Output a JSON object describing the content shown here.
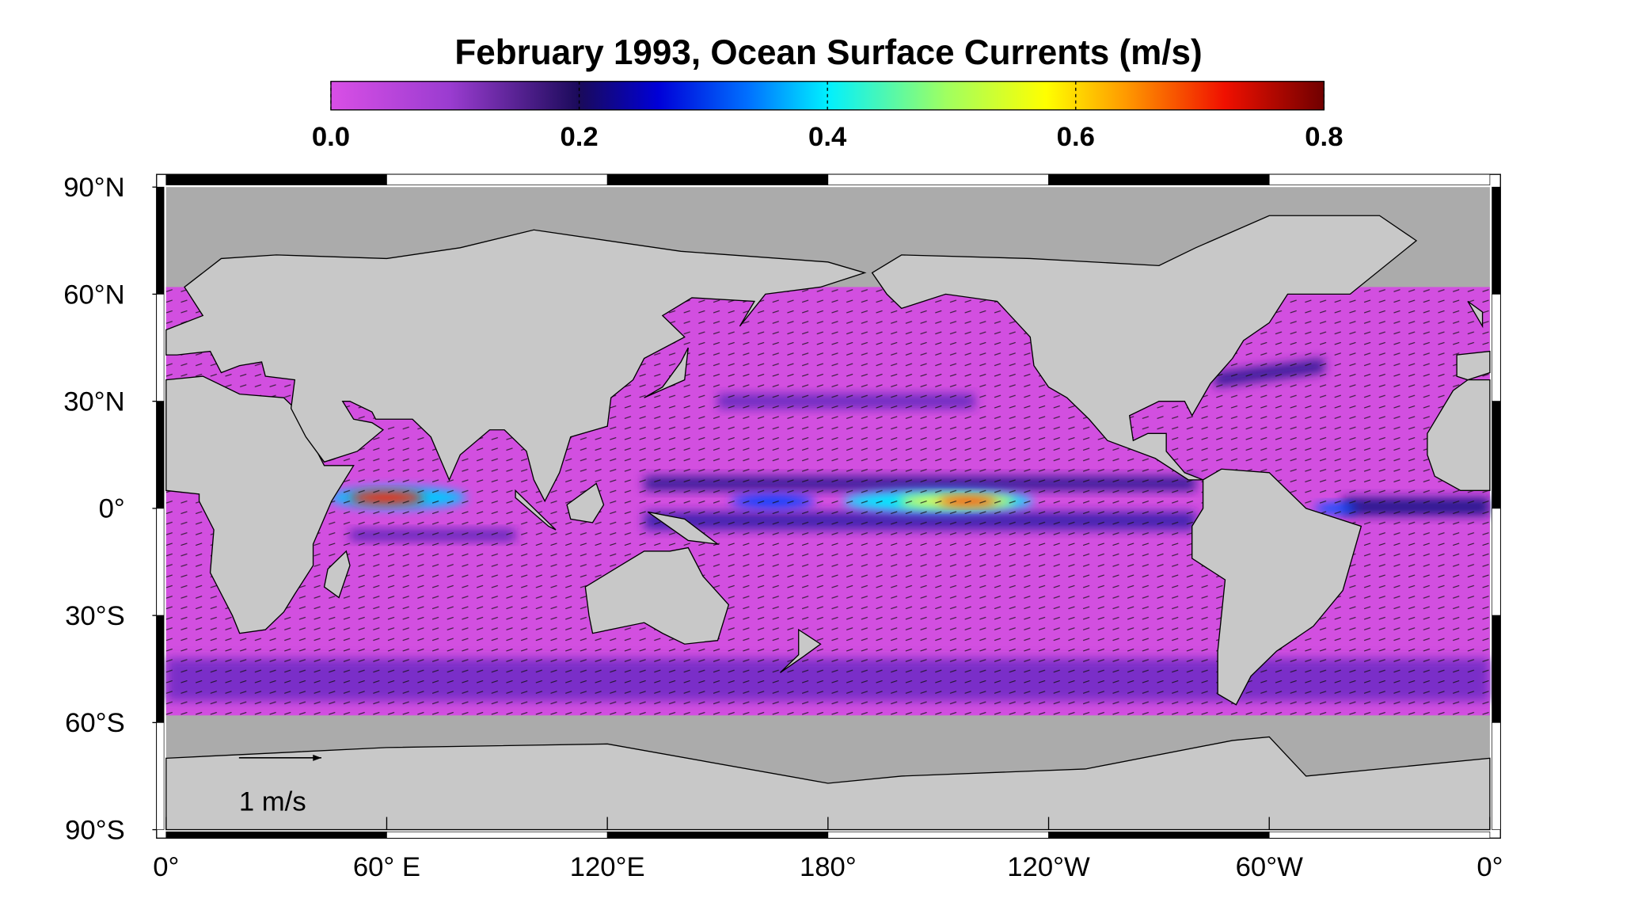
{
  "title": "February 1993, Ocean Surface Currents  (m/s)",
  "colorbar": {
    "range": [
      0,
      0.8
    ],
    "ticks": [
      {
        "value": 0,
        "label": "0.0"
      },
      {
        "value": 0.2,
        "label": "0.2"
      },
      {
        "value": 0.4,
        "label": "0.4"
      },
      {
        "value": 0.6,
        "label": "0.6"
      },
      {
        "value": 0.8,
        "label": "0.8"
      }
    ]
  },
  "map": {
    "lat_ticks": [
      {
        "value": 90,
        "label": "90°N"
      },
      {
        "value": 60,
        "label": "60°N"
      },
      {
        "value": 30,
        "label": "30°N"
      },
      {
        "value": 0,
        "label": "0°"
      },
      {
        "value": -30,
        "label": "30°S"
      },
      {
        "value": -60,
        "label": "60°S"
      },
      {
        "value": -90,
        "label": "90°S"
      }
    ],
    "lon_ticks": [
      {
        "value": 0,
        "label": "0°"
      },
      {
        "value": 60,
        "label": "60° E"
      },
      {
        "value": 120,
        "label": "120°E"
      },
      {
        "value": 180,
        "label": "180°"
      },
      {
        "value": 240,
        "label": "120°W"
      },
      {
        "value": 300,
        "label": "60°W"
      },
      {
        "value": 360,
        "label": "0°"
      }
    ]
  },
  "scale_label": "1 m/s"
}
